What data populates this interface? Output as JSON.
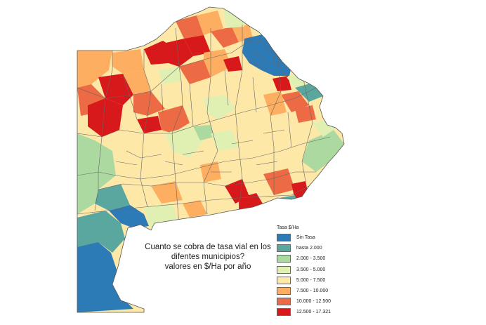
{
  "caption": {
    "line1": "Cuanto se cobra de tasa vial en los",
    "line2": "difentes municipios?",
    "line3": "valores en $/Ha por año"
  },
  "legend": {
    "title": "Tasa $/Ha",
    "items": [
      {
        "label": "Sin Tasa",
        "color": "#2c7bb6"
      },
      {
        "label": "hasta 2.000",
        "color": "#5aa7a0"
      },
      {
        "label": "2.000 - 3.500",
        "color": "#abd9a0"
      },
      {
        "label": "3.500 - 5.000",
        "color": "#e0f0b3"
      },
      {
        "label": "5.000 - 7.500",
        "color": "#fee8a8"
      },
      {
        "label": "7.500 - 10.000",
        "color": "#fdae61"
      },
      {
        "label": "10.000 - 12.500",
        "color": "#ec6b45"
      },
      {
        "label": "12.500 - 17.321",
        "color": "#d7191c"
      }
    ]
  },
  "colors": {
    "border": "#666666",
    "background": "#ffffff"
  }
}
